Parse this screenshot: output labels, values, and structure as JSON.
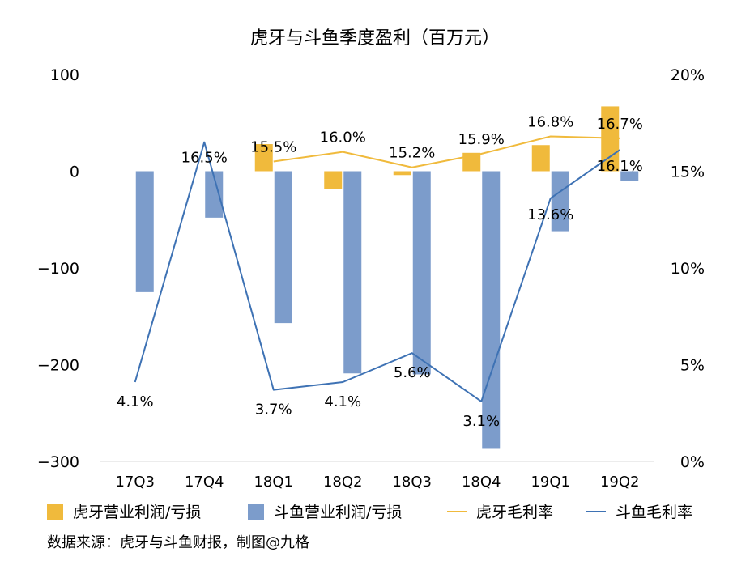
{
  "chart_data": {
    "type": "bar",
    "title": "虎牙与斗鱼季度盈利（百万元）",
    "categories": [
      "17Q3",
      "17Q4",
      "18Q1",
      "18Q2",
      "18Q3",
      "18Q4",
      "19Q1",
      "19Q2"
    ],
    "ylim": [
      -300,
      100
    ],
    "y_ticks": [
      "100",
      "0",
      "−100",
      "−200",
      "−300"
    ],
    "y_tick_values": [
      100,
      0,
      -100,
      -200,
      -300
    ],
    "y2lim": [
      0,
      20
    ],
    "y2_ticks": [
      "20%",
      "15%",
      "10%",
      "5%",
      "0%"
    ],
    "y2_tick_values": [
      20,
      15,
      10,
      5,
      0
    ],
    "grid": false,
    "legend_position": "bottom",
    "series": [
      {
        "name": "虎牙营业利润/亏损",
        "type": "bar",
        "axis": "left",
        "color": "#F0BA3C",
        "values": [
          null,
          null,
          28,
          -18,
          -4,
          19,
          27,
          67
        ]
      },
      {
        "name": "斗鱼营业利润/亏损",
        "type": "bar",
        "axis": "left",
        "color": "#7C9CCB",
        "values": [
          -125,
          -48,
          -157,
          -209,
          -210,
          -287,
          -62,
          -10
        ]
      },
      {
        "name": "虎牙毛利率",
        "type": "line",
        "axis": "right",
        "color": "#F0BA3C",
        "values": [
          null,
          null,
          15.5,
          16.0,
          15.2,
          15.9,
          16.8,
          16.7
        ],
        "labels": [
          null,
          null,
          "15.5%",
          "16.0%",
          "15.2%",
          "15.9%",
          "16.8%",
          "16.7%"
        ]
      },
      {
        "name": "斗鱼毛利率",
        "type": "line",
        "axis": "right",
        "color": "#3E72B4",
        "values": [
          4.1,
          16.5,
          3.7,
          4.1,
          5.6,
          3.1,
          13.6,
          16.1
        ],
        "labels": [
          "4.1%",
          "16.5%",
          "3.7%",
          "4.1%",
          "5.6%",
          "3.1%",
          "13.6%",
          "16.1%"
        ]
      }
    ]
  },
  "source": "数据来源：虎牙与斗鱼财报，制图@九格"
}
